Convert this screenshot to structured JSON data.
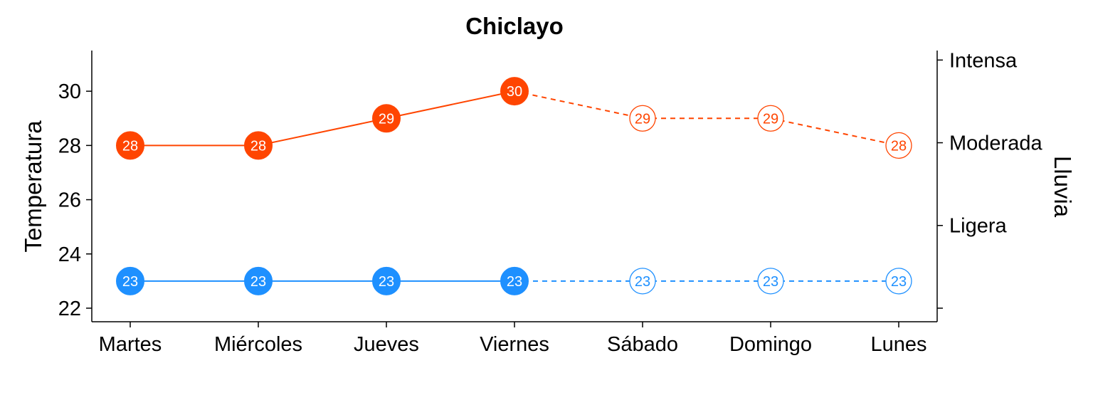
{
  "chart_data": {
    "type": "line",
    "title": "Chiclayo",
    "ylabel": "Temperatura",
    "y2label": "Lluvia",
    "categories": [
      "Martes",
      "Miércoles",
      "Jueves",
      "Viernes",
      "Sábado",
      "Domingo",
      "Lunes"
    ],
    "ylim": [
      21.5,
      31.5
    ],
    "yticks": [
      22,
      24,
      26,
      28,
      30
    ],
    "y2ticks": [
      {
        "label": "",
        "value": 22
      },
      {
        "label": "Ligera",
        "value": 25.05
      },
      {
        "label": "Moderada",
        "value": 28.1
      },
      {
        "label": "Intensa",
        "value": 31.15
      }
    ],
    "series": [
      {
        "color": "#FF4500",
        "values": [
          28,
          28,
          29,
          30,
          29,
          29,
          28
        ],
        "labels": [
          "28",
          "28",
          "29",
          "30",
          "29",
          "29",
          "28"
        ],
        "observed_count": 4
      },
      {
        "color": "#1E90FF",
        "values": [
          23,
          23,
          23,
          23,
          23,
          23,
          23
        ],
        "labels": [
          "23",
          "23",
          "23",
          "23",
          "23",
          "23",
          "23"
        ],
        "observed_count": 4
      }
    ],
    "grid": false,
    "legend": "none"
  }
}
